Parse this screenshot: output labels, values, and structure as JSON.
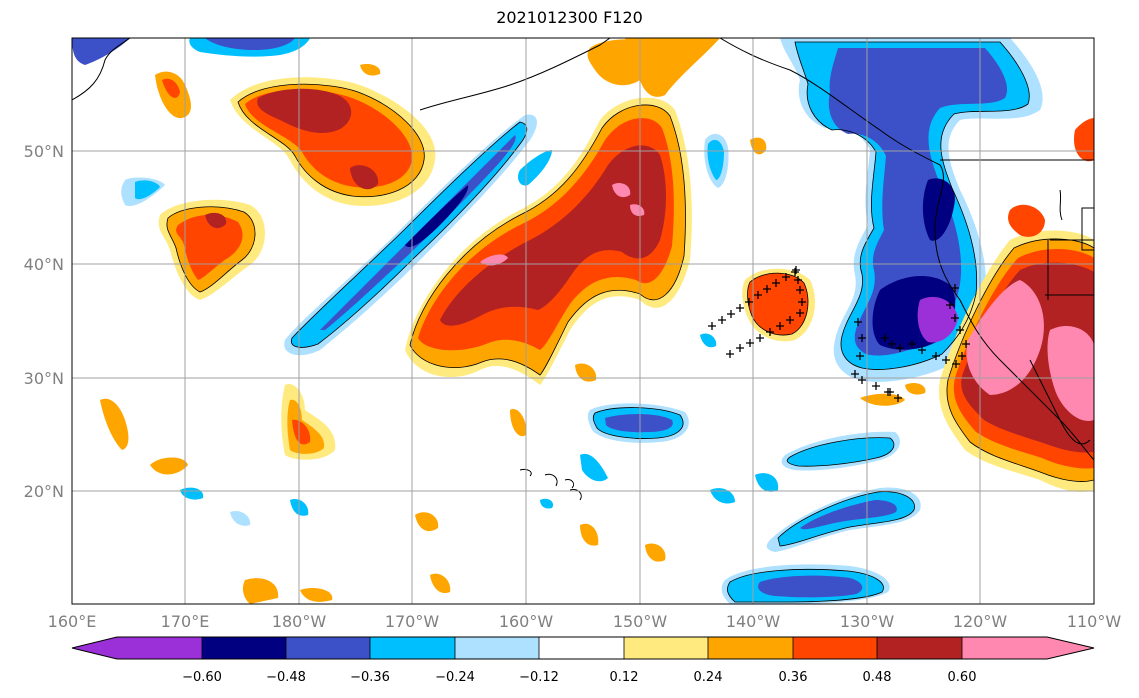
{
  "title": "2021012300 F120",
  "map": {
    "lon_labels": [
      "160°E",
      "170°E",
      "180°W",
      "170°W",
      "160°W",
      "150°W",
      "140°W",
      "130°W",
      "120°W",
      "110°W"
    ],
    "lat_labels": [
      "50°N",
      "40°N",
      "30°N",
      "20°N"
    ],
    "grid": true
  },
  "colorbar": {
    "ticks": [
      "−0.60",
      "−0.48",
      "−0.36",
      "−0.24",
      "−0.12",
      "0.12",
      "0.24",
      "0.36",
      "0.48",
      "0.60"
    ],
    "colors": [
      "#9b30d8",
      "#000080",
      "#3c50c8",
      "#00bfff",
      "#aee0ff",
      "#ffffff",
      "#ffea80",
      "#ffa500",
      "#ff4500",
      "#b22222",
      "#ff88b0"
    ],
    "extend": "both"
  },
  "palette": {
    "light_blue": "#aee0ff",
    "cyan": "#00bfff",
    "blue": "#3c50c8",
    "navy": "#000080",
    "purple": "#9b30d8",
    "yellow": "#ffea80",
    "orange": "#ffa500",
    "red_orange": "#ff4500",
    "dark_red": "#b22222",
    "pink": "#ff88b0"
  }
}
